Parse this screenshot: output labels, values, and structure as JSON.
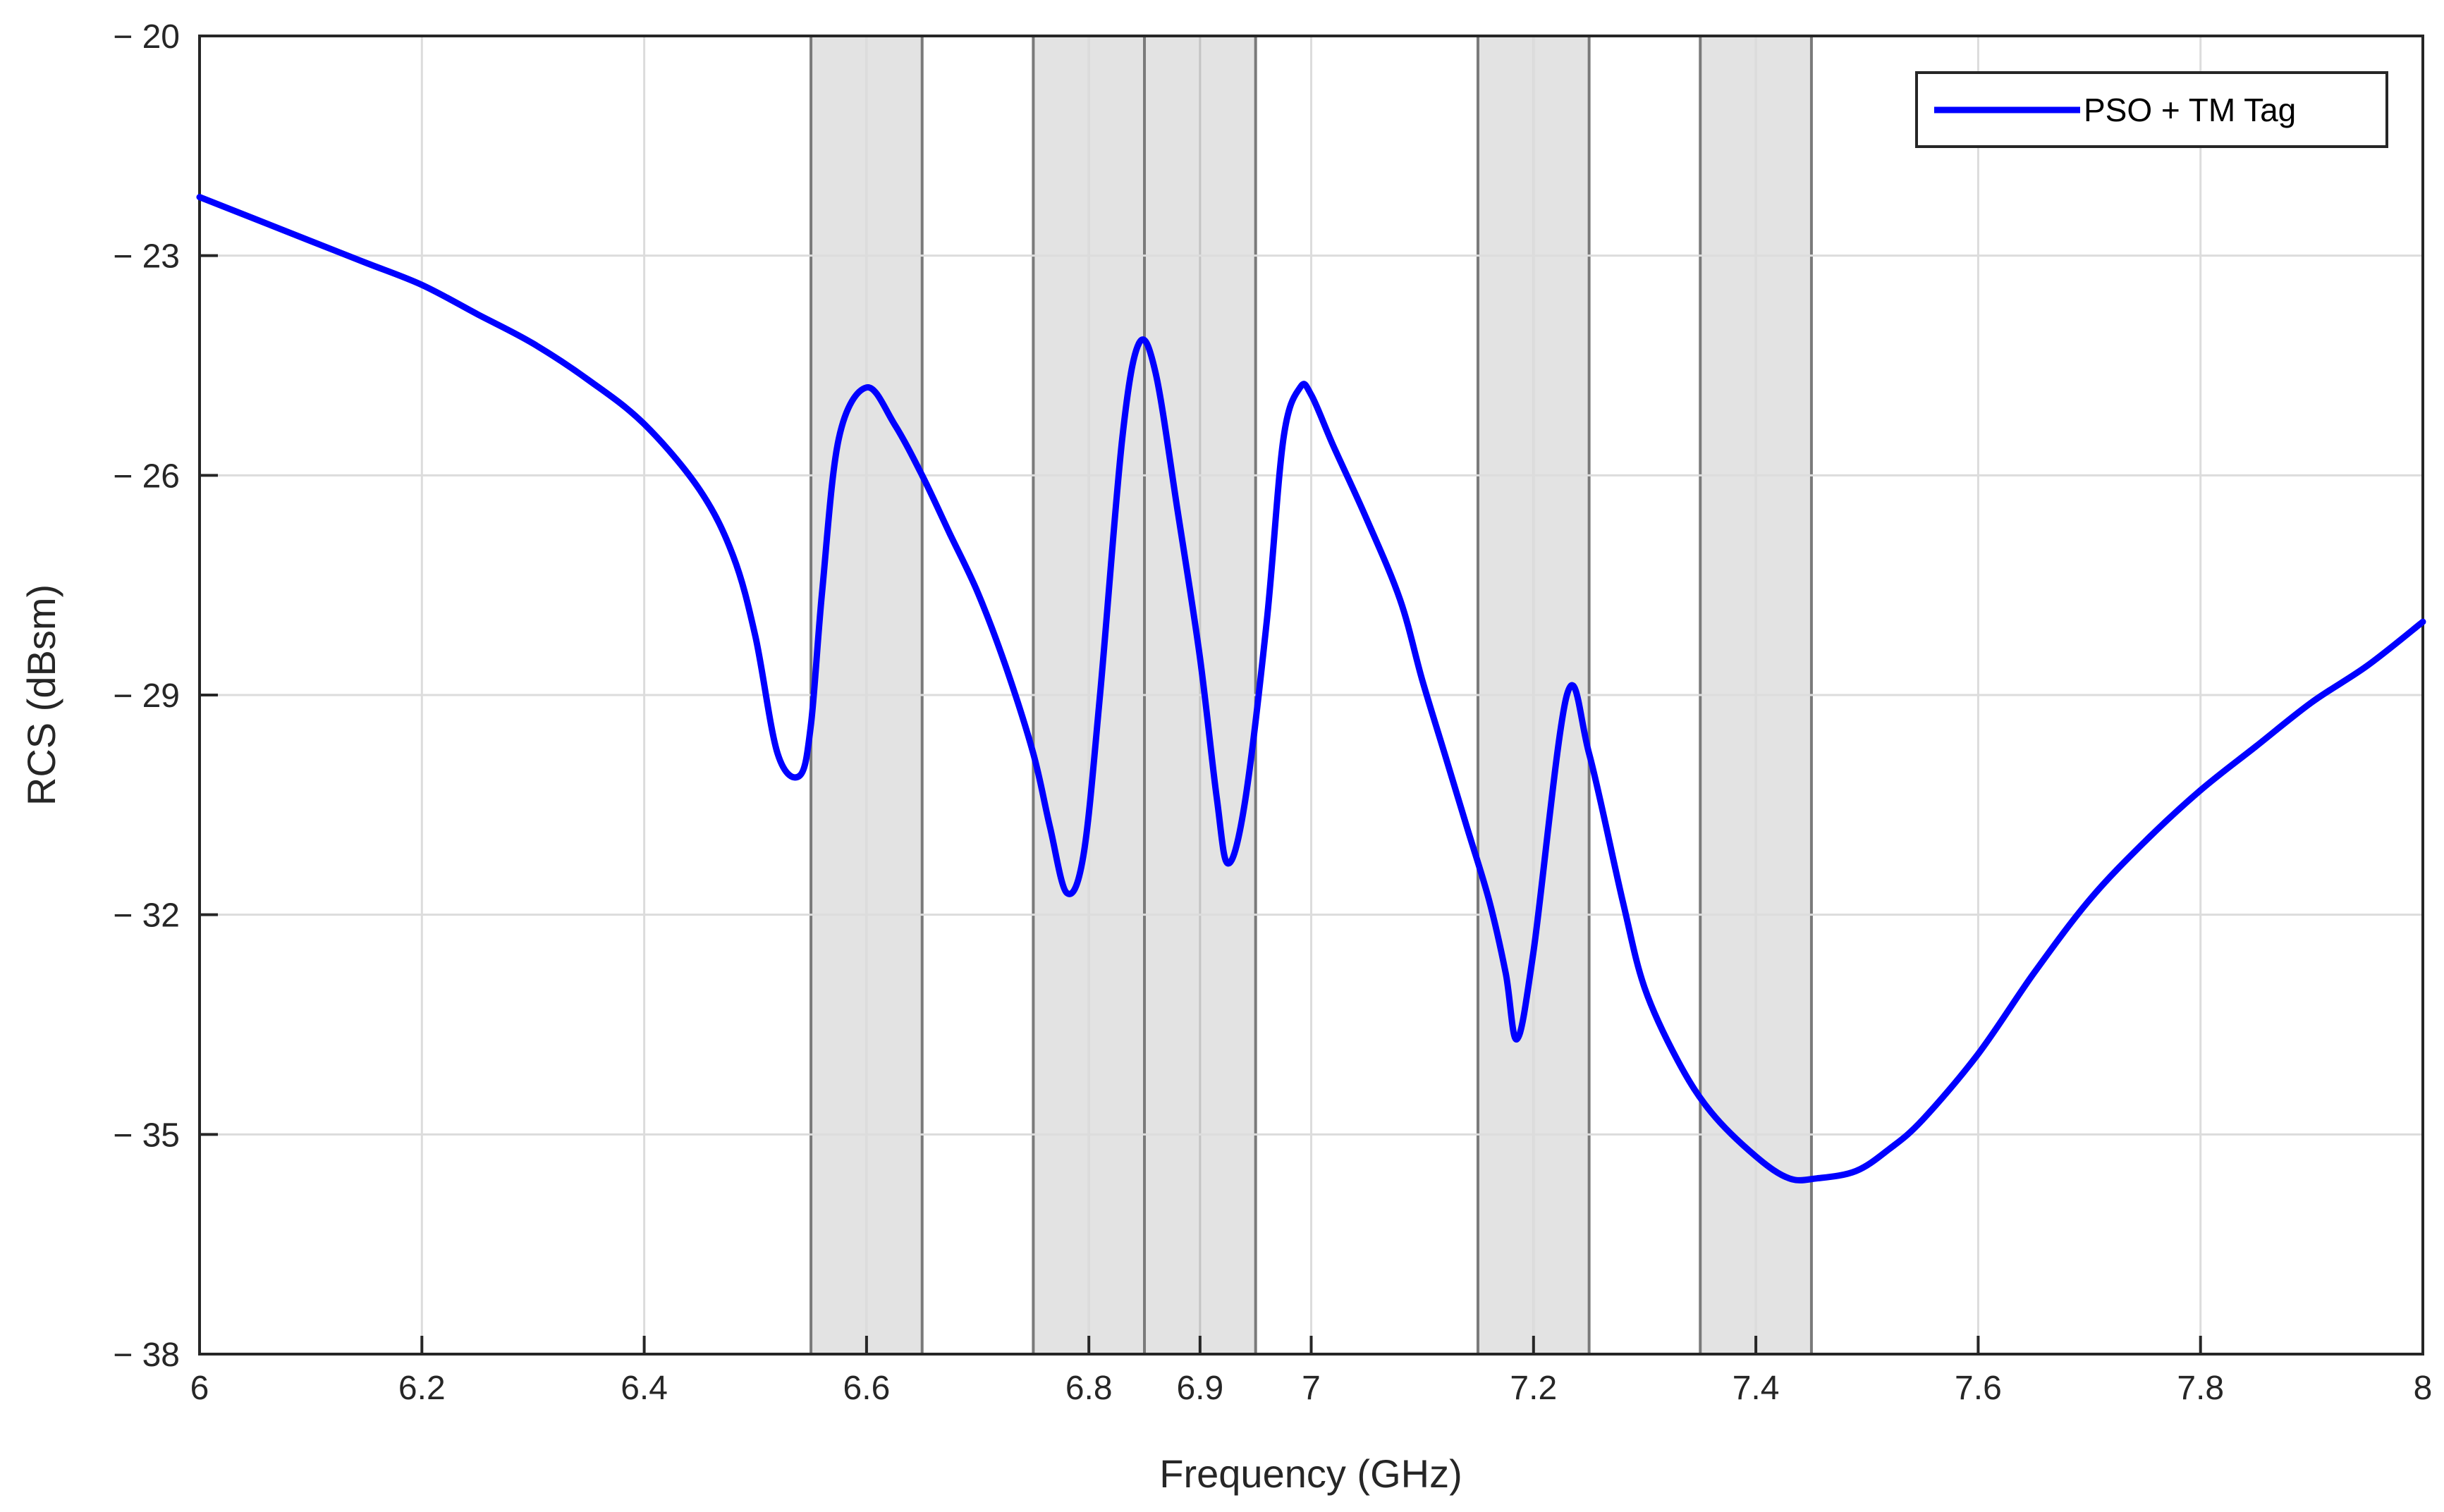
{
  "chart_data": {
    "type": "line",
    "xlabel": "Frequency (GHz)",
    "ylabel": "RCS (dBsm)",
    "xlim": [
      6,
      8
    ],
    "ylim": [
      -38,
      -20
    ],
    "xticks": [
      6,
      6.2,
      6.4,
      6.6,
      6.8,
      6.9,
      7,
      7.2,
      7.4,
      7.6,
      7.8,
      8
    ],
    "xtick_labels": [
      "6",
      "6.2",
      "6.4",
      "6.6",
      "6.8",
      "6.9",
      "7",
      "7.2",
      "7.4",
      "7.6",
      "7.8",
      "8"
    ],
    "yticks": [
      -38,
      -35,
      -32,
      -29,
      -26,
      -23,
      -20
    ],
    "ytick_labels": [
      "− 38",
      "− 35",
      "− 32",
      "− 29",
      "− 26",
      "− 23",
      "− 20"
    ],
    "grid": true,
    "legend_position": "top-right",
    "shaded_bands": [
      {
        "x0": 6.55,
        "x1": 6.65,
        "divider": 6.6
      },
      {
        "x0": 6.75,
        "x1": 6.85,
        "divider": 6.8
      },
      {
        "x0": 6.85,
        "x1": 6.95,
        "divider": 6.9
      },
      {
        "x0": 7.15,
        "x1": 7.25,
        "divider": 7.2
      },
      {
        "x0": 7.35,
        "x1": 7.45,
        "divider": 7.4
      }
    ],
    "series": [
      {
        "name": "PSO + TM Tag",
        "color": "#0000ff",
        "x": [
          6.0,
          6.05,
          6.1,
          6.15,
          6.2,
          6.25,
          6.3,
          6.35,
          6.4,
          6.45,
          6.48,
          6.5,
          6.52,
          6.54,
          6.55,
          6.56,
          6.575,
          6.6,
          6.625,
          6.65,
          6.675,
          6.7,
          6.725,
          6.75,
          6.765,
          6.78,
          6.795,
          6.81,
          6.83,
          6.845,
          6.86,
          6.88,
          6.9,
          6.915,
          6.925,
          6.94,
          6.96,
          6.975,
          6.99,
          7.0,
          7.02,
          7.05,
          7.08,
          7.1,
          7.12,
          7.14,
          7.16,
          7.175,
          7.185,
          7.2,
          7.23,
          7.25,
          7.28,
          7.3,
          7.33,
          7.36,
          7.4,
          7.43,
          7.455,
          7.49,
          7.52,
          7.55,
          7.6,
          7.65,
          7.7,
          7.75,
          7.8,
          7.85,
          7.9,
          7.95,
          8.0
        ],
        "y": [
          -22.2,
          -22.5,
          -22.8,
          -23.1,
          -23.4,
          -23.8,
          -24.2,
          -24.7,
          -25.3,
          -26.2,
          -27.1,
          -28.2,
          -29.8,
          -30.1,
          -29.4,
          -27.6,
          -25.5,
          -24.8,
          -25.3,
          -26.0,
          -26.8,
          -27.6,
          -28.6,
          -29.8,
          -30.8,
          -31.7,
          -31.2,
          -29.0,
          -25.5,
          -24.2,
          -24.6,
          -26.5,
          -28.5,
          -30.4,
          -31.3,
          -30.5,
          -28.0,
          -25.5,
          -24.8,
          -24.9,
          -25.6,
          -26.6,
          -27.7,
          -28.8,
          -29.8,
          -30.8,
          -31.8,
          -32.8,
          -33.7,
          -32.5,
          -29.0,
          -29.8,
          -31.8,
          -33.0,
          -34.0,
          -34.7,
          -35.3,
          -35.6,
          -35.6,
          -35.5,
          -35.2,
          -34.8,
          -33.9,
          -32.8,
          -31.8,
          -31.0,
          -30.3,
          -29.7,
          -29.1,
          -28.6,
          -28.0
        ]
      }
    ]
  }
}
